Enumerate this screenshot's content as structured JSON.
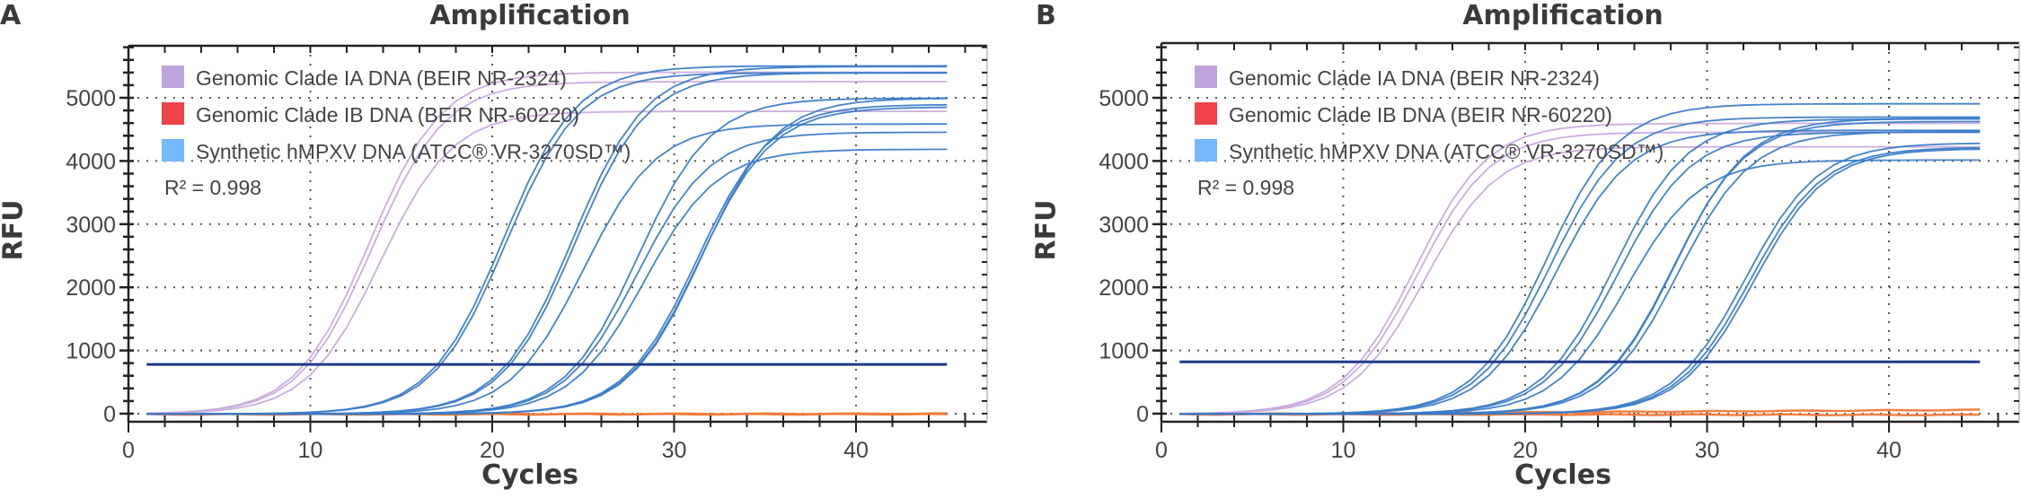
{
  "figure": {
    "panels": [
      {
        "letter": "A",
        "title": "Amplification",
        "ylabel": "RFU",
        "xlabel": "Cycles"
      },
      {
        "letter": "B",
        "title": "Amplification",
        "ylabel": "RFU",
        "xlabel": "Cycles"
      }
    ],
    "legend": [
      {
        "label": "Genomic Clade IA DNA (BEIR NR-2324)",
        "color": "#bfa3dc"
      },
      {
        "label": "Genomic Clade IB DNA (BEIR NR-60220)",
        "color": "#ef4148"
      },
      {
        "label": "Synthetic hMPXV DNA (ATCC® VR-3270SD™)",
        "color": "#74b8ff"
      }
    ],
    "r2_label": "R² = 0.998",
    "colors": {
      "clade_ia_curve": "#c9a9dc",
      "synthetic_curve": "#3a7cc8",
      "clade_ib_curve": "#f07a3c",
      "threshold": "#1f3a8a",
      "axis": "#222222",
      "grid": "#555555"
    }
  },
  "chart_data": [
    {
      "type": "line",
      "title": "Amplification",
      "panel": "A",
      "xlabel": "Cycles",
      "ylabel": "RFU",
      "xlim": [
        0,
        47
      ],
      "ylim": [
        -200,
        5800
      ],
      "xticks": [
        0,
        10,
        20,
        30,
        40
      ],
      "yticks": [
        0,
        1000,
        2000,
        3000,
        4000,
        5000
      ],
      "grid": true,
      "legend_position": "upper left",
      "annotation": "R² = 0.998",
      "threshold_rfu": 780,
      "cycle_range": [
        1,
        45
      ],
      "series": [
        {
          "name": "Genomic Clade IA DNA (BEIR NR-2324)",
          "curves": [
            {
              "ct": 16.8,
              "plateau": 5410
            },
            {
              "ct": 16.9,
              "plateau": 5260
            },
            {
              "ct": 17.1,
              "plateau": 4790
            }
          ]
        },
        {
          "name": "Genomic Clade IB DNA (BEIR NR-60220)",
          "curves": [
            {
              "ct": null,
              "plateau": 10
            },
            {
              "ct": null,
              "plateau": 0
            }
          ]
        },
        {
          "name": "Synthetic hMPXV DNA (ATCC® VR-3270SD™)",
          "curves": [
            {
              "ct": 24.2,
              "plateau": 5510
            },
            {
              "ct": 24.3,
              "plateau": 5400
            },
            {
              "ct": 28.0,
              "plateau": 5500
            },
            {
              "ct": 28.1,
              "plateau": 5400
            },
            {
              "ct": 28.2,
              "plateau": 4590
            },
            {
              "ct": 31.1,
              "plateau": 4460
            },
            {
              "ct": 31.3,
              "plateau": 4190
            },
            {
              "ct": 31.4,
              "plateau": 5000
            },
            {
              "ct": 34.6,
              "plateau": 4900
            },
            {
              "ct": 34.7,
              "plateau": 4860
            },
            {
              "ct": 34.9,
              "plateau": 5000
            }
          ]
        }
      ]
    },
    {
      "type": "line",
      "title": "Amplification",
      "panel": "B",
      "xlabel": "Cycles",
      "ylabel": "RFU",
      "xlim": [
        0,
        47
      ],
      "ylim": [
        -200,
        5800
      ],
      "xticks": [
        0,
        10,
        20,
        30,
        40
      ],
      "yticks": [
        0,
        1000,
        2000,
        3000,
        4000,
        5000
      ],
      "grid": true,
      "legend_position": "upper left",
      "annotation": "R² = 0.998",
      "threshold_rfu": 820,
      "cycle_range": [
        1,
        45
      ],
      "series": [
        {
          "name": "Genomic Clade IA DNA (BEIR NR-2324)",
          "curves": [
            {
              "ct": 17.0,
              "plateau": 4600
            },
            {
              "ct": 17.1,
              "plateau": 4460
            },
            {
              "ct": 17.3,
              "plateau": 4230
            }
          ]
        },
        {
          "name": "Genomic Clade IB DNA (BEIR NR-60220)",
          "curves": [
            {
              "ct": null,
              "plateau": 70
            },
            {
              "ct": null,
              "plateau": -10
            }
          ]
        },
        {
          "name": "Synthetic hMPXV DNA (ATCC® VR-3270SD™)",
          "curves": [
            {
              "ct": 24.4,
              "plateau": 4910
            },
            {
              "ct": 24.5,
              "plateau": 4700
            },
            {
              "ct": 24.7,
              "plateau": 4490
            },
            {
              "ct": 28.0,
              "plateau": 4670
            },
            {
              "ct": 28.1,
              "plateau": 4460
            },
            {
              "ct": 28.3,
              "plateau": 4020
            },
            {
              "ct": 31.2,
              "plateau": 4630
            },
            {
              "ct": 31.3,
              "plateau": 4680
            },
            {
              "ct": 31.4,
              "plateau": 4470
            },
            {
              "ct": 35.0,
              "plateau": 4290
            },
            {
              "ct": 35.2,
              "plateau": 4220
            },
            {
              "ct": 35.4,
              "plateau": 4200
            }
          ]
        }
      ]
    }
  ]
}
